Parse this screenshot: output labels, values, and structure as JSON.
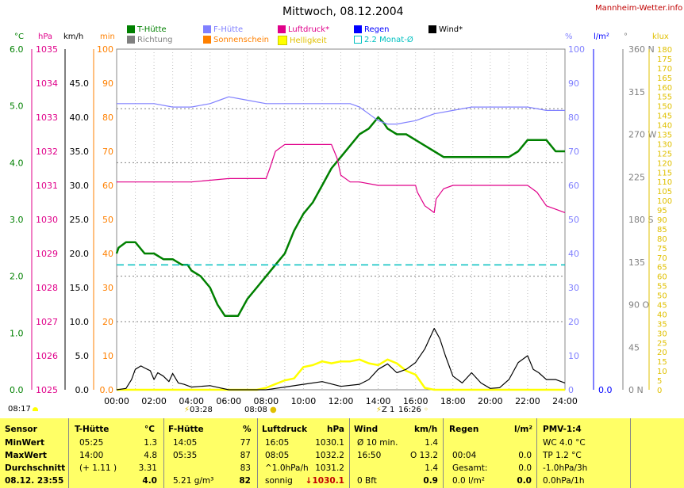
{
  "header": {
    "title": "Mittwoch, 08.12.2004",
    "site": "Mannheim-Wetter.info"
  },
  "legend": [
    {
      "label": "T-Hütte",
      "color": "#008000",
      "fill": true
    },
    {
      "label": "Richtung",
      "color": "#808080",
      "fill": true
    },
    {
      "label": "F-Hütte",
      "color": "#8080ff",
      "fill": true
    },
    {
      "label": "Sonnenschein",
      "color": "#ff8000",
      "fill": true
    },
    {
      "label": "Luftdruck*",
      "color": "#e0008a",
      "fill": true
    },
    {
      "label": "Helligkeit",
      "color": "#ffff00",
      "fill": true
    },
    {
      "label": "Regen",
      "color": "#0000ff",
      "fill": true
    },
    {
      "label": "2.2 Monat-Ø",
      "color": "#00c0c0",
      "fill": false
    },
    {
      "label": "Wind*",
      "color": "#000000",
      "fill": true
    }
  ],
  "units": {
    "celsius": "°C",
    "hpa": "hPa",
    "kmh": "km/h",
    "min": "min",
    "percent": "%",
    "lm2": "l/m²",
    "deg": "°",
    "klux": "klux"
  },
  "axes": {
    "celsius": [
      "0.0",
      "1.0",
      "2.0",
      "3.0",
      "4.0",
      "5.0",
      "6.0"
    ],
    "hpa": [
      "1025",
      "1026",
      "1027",
      "1028",
      "1029",
      "1030",
      "1031",
      "1032",
      "1033",
      "1034",
      "1035"
    ],
    "kmh": [
      "0.0",
      "5.0",
      "10.0",
      "15.0",
      "20.0",
      "25.0",
      "30.0",
      "35.0",
      "40.0",
      "45.0"
    ],
    "min": [
      "0.0",
      "10",
      "20",
      "30",
      "40",
      "50",
      "60",
      "70",
      "80",
      "90",
      "100"
    ],
    "percent": [
      "0",
      "10",
      "20",
      "30",
      "40",
      "50",
      "60",
      "70",
      "80",
      "90",
      "100"
    ],
    "lm2": [
      "0.0"
    ],
    "deg": [
      "0 N",
      "45",
      "90 O",
      "135",
      "180 S",
      "225",
      "270 W",
      "315",
      "360 N"
    ],
    "klux": [
      "0",
      "5",
      "10",
      "15",
      "20",
      "25",
      "30",
      "35",
      "40",
      "45",
      "50",
      "55",
      "60",
      "65",
      "70",
      "75",
      "80",
      "85",
      "90",
      "95",
      "100",
      "105",
      "110",
      "115",
      "120",
      "125",
      "130",
      "135",
      "140",
      "145",
      "150",
      "155",
      "160",
      "165",
      "170",
      "175",
      "180"
    ],
    "time": [
      "00:00",
      "02:00",
      "04:00",
      "06:00",
      "08:00",
      "10:00",
      "12:00",
      "14:00",
      "16:00",
      "18:00",
      "20:00",
      "22:00",
      "24:00"
    ]
  },
  "events": {
    "sunrise": "08:17",
    "e1": "03:28",
    "e2": "08:08",
    "e3": "16:26",
    "e3prefix": "Z 1",
    "e4": "16:26"
  },
  "chart_data": {
    "type": "line",
    "title": "Mittwoch, 08.12.2004",
    "x_label": "",
    "xlim": [
      0,
      24
    ],
    "series": [
      {
        "name": "T-Hütte",
        "unit": "°C",
        "color": "#008000",
        "x": [
          0,
          0.1,
          0.5,
          1.0,
          1.5,
          2.0,
          2.5,
          3.0,
          3.5,
          3.8,
          4.0,
          4.5,
          5.0,
          5.4,
          5.8,
          6.2,
          6.5,
          7.0,
          7.5,
          8.0,
          8.5,
          9.0,
          9.5,
          10.0,
          10.5,
          11.0,
          11.5,
          12.0,
          12.5,
          13.0,
          13.5,
          14.0,
          14.3,
          14.5,
          15.0,
          15.5,
          16.0,
          16.5,
          17.0,
          17.5,
          18.0,
          19.0,
          20.0,
          20.5,
          21.0,
          21.5,
          22.0,
          22.5,
          23.0,
          23.5,
          24.0
        ],
        "y": [
          2.4,
          2.5,
          2.6,
          2.6,
          2.4,
          2.4,
          2.3,
          2.3,
          2.2,
          2.2,
          2.1,
          2.0,
          1.8,
          1.5,
          1.3,
          1.3,
          1.3,
          1.6,
          1.8,
          2.0,
          2.2,
          2.4,
          2.8,
          3.1,
          3.3,
          3.6,
          3.9,
          4.1,
          4.3,
          4.5,
          4.6,
          4.8,
          4.7,
          4.6,
          4.5,
          4.5,
          4.4,
          4.3,
          4.2,
          4.1,
          4.1,
          4.1,
          4.1,
          4.1,
          4.1,
          4.2,
          4.4,
          4.4,
          4.4,
          4.2,
          4.2
        ]
      },
      {
        "name": "F-Hütte",
        "unit": "%",
        "color": "#8080ff",
        "x": [
          0,
          1,
          2,
          3,
          4,
          5,
          5.5,
          6,
          7,
          8,
          9,
          10,
          11,
          12,
          12.5,
          13,
          13.5,
          14,
          14.5,
          15,
          16,
          16.5,
          17,
          18,
          19,
          20,
          21,
          22,
          23,
          24
        ],
        "y": [
          84,
          84,
          84,
          83,
          83,
          84,
          85,
          86,
          85,
          84,
          84,
          84,
          84,
          84,
          84,
          83,
          81,
          79,
          78,
          78,
          79,
          80,
          81,
          82,
          83,
          83,
          83,
          83,
          82,
          82
        ]
      },
      {
        "name": "Luftdruck*",
        "unit": "hPa",
        "color": "#e0008a",
        "x": [
          0,
          2,
          4,
          6,
          7,
          8.0,
          8.2,
          8.5,
          9,
          10,
          11,
          11.5,
          11.8,
          12,
          12.5,
          13,
          14,
          15,
          16,
          16.1,
          16.5,
          17,
          17.1,
          17.5,
          18,
          19,
          20,
          21,
          22,
          22.5,
          23,
          23.5,
          24
        ],
        "y": [
          1031.1,
          1031.1,
          1031.1,
          1031.2,
          1031.2,
          1031.2,
          1031.5,
          1032.0,
          1032.2,
          1032.2,
          1032.2,
          1032.2,
          1031.8,
          1031.3,
          1031.1,
          1031.1,
          1031.0,
          1031.0,
          1031.0,
          1030.8,
          1030.4,
          1030.2,
          1030.6,
          1030.9,
          1031.0,
          1031.0,
          1031.0,
          1031.0,
          1031.0,
          1030.8,
          1030.4,
          1030.3,
          1030.2
        ]
      },
      {
        "name": "Helligkeit",
        "unit": "klux",
        "color": "#ffff00",
        "x": [
          0,
          7.5,
          8.0,
          8.5,
          9,
          9.5,
          10,
          10.5,
          11,
          11.5,
          12,
          12.5,
          13,
          13.5,
          14,
          14.5,
          15,
          15.5,
          16,
          16.5,
          17,
          24
        ],
        "y": [
          0,
          0,
          1,
          3,
          5,
          6,
          12,
          13,
          15,
          14,
          15,
          15,
          16,
          14,
          13,
          16,
          14,
          10,
          8,
          1,
          0,
          0
        ]
      },
      {
        "name": "Wind*",
        "unit": "km/h",
        "color": "#000000",
        "x": [
          0,
          0.5,
          0.8,
          1.0,
          1.3,
          1.5,
          1.8,
          2.0,
          2.2,
          2.5,
          2.8,
          3.0,
          3.3,
          3.6,
          4.0,
          4.5,
          5.0,
          5.5,
          6.0,
          8.0,
          8.5,
          9,
          10,
          11,
          12,
          13,
          13.5,
          14,
          14.5,
          15,
          15.5,
          16,
          16.5,
          17,
          17.3,
          17.6,
          18,
          18.5,
          19,
          19.5,
          20,
          20.5,
          21,
          21.5,
          22,
          22.3,
          22.6,
          23,
          23.5,
          24
        ],
        "y": [
          0,
          0.2,
          1.5,
          3.0,
          3.5,
          3.2,
          2.8,
          1.5,
          2.5,
          2.0,
          1.2,
          2.4,
          1.0,
          0.8,
          0.4,
          0.5,
          0.6,
          0.3,
          0,
          0,
          0.2,
          0.4,
          0.8,
          1.2,
          0.5,
          0.8,
          1.5,
          3.0,
          3.8,
          2.5,
          3.0,
          4.0,
          6.0,
          9.0,
          7.5,
          5.0,
          2.0,
          1.0,
          2.5,
          1.0,
          0.2,
          0.3,
          1.5,
          4.0,
          5.0,
          3.0,
          2.5,
          1.5,
          1.5,
          1.0
        ]
      },
      {
        "name": "2.2 Monat-Ø",
        "unit": "°C",
        "color": "#00c0c0",
        "x": [
          0,
          24
        ],
        "y": [
          2.2,
          2.2
        ]
      }
    ]
  },
  "table": {
    "headers": [
      "Sensor",
      "T-Hütte",
      "°C",
      "F-Hütte",
      "%",
      "Luftdruck",
      "hPa",
      "Wind",
      "km/h",
      "Regen",
      "l/m²",
      "PMV-1:4"
    ],
    "rows": [
      {
        "label": "MinWert",
        "t_time": "05:25",
        "t_val": "1.3",
        "f_time": "14:05",
        "f_val": "77",
        "p_time": "16:05",
        "p_val": "1030.1",
        "w_note": "Ø 10 min.",
        "w_val": "1.4",
        "r_time": "",
        "r_val": "",
        "pmv": "WC 4.0 °C"
      },
      {
        "label": "MaxWert",
        "t_time": "14:00",
        "t_val": "4.8",
        "f_time": "05:35",
        "f_val": "87",
        "p_time": "08:05",
        "p_val": "1032.2",
        "w_note": "16:50",
        "w_dir": "O 13.2",
        "r_time": "00:04",
        "r_val": "0.0",
        "pmv": "TP 1.2 °C"
      },
      {
        "label": "Durchschnitt",
        "t_time": "(+ 1.11 )",
        "t_val": "3.31",
        "f_time": "",
        "f_val": "83",
        "p_time": "^1.0hPa/h",
        "p_val": "1031.2",
        "w_note": "",
        "w_val": "1.4",
        "r_time": "Gesamt:",
        "r_val": "0.0",
        "pmv": "-1.0hPa/3h"
      },
      {
        "label": "08.12. 23:55",
        "t_time": "",
        "t_val": "4.0",
        "f_time": "5.21 g/m³",
        "f_val": "82",
        "p_time": "sonnig",
        "p_val": "↓1030.1",
        "w_note": "0 Bft",
        "w_val": "0.9",
        "r_time": "0.0 l/m²",
        "r_val": "0.0",
        "pmv": "0.0hPa/1h"
      }
    ]
  }
}
